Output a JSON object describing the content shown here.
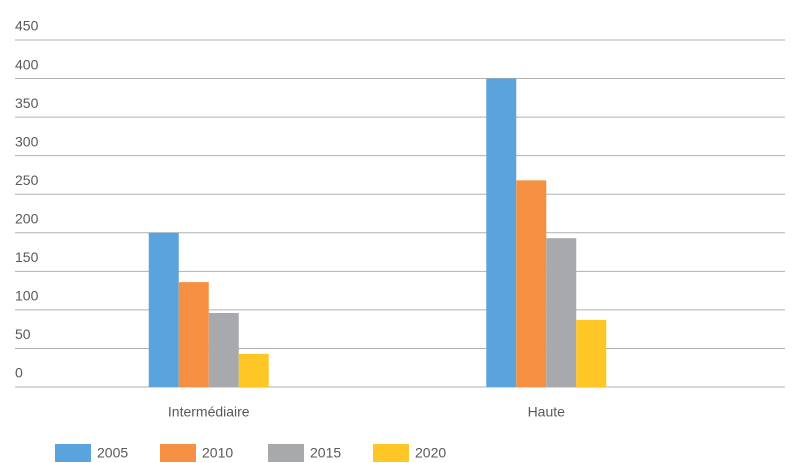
{
  "chart_data": {
    "type": "bar",
    "categories": [
      "Intermédiaire",
      "Haute"
    ],
    "series": [
      {
        "name": "2005",
        "color": "#5ba3dc",
        "values": [
          200,
          400
        ]
      },
      {
        "name": "2010",
        "color": "#f59042",
        "values": [
          136,
          268
        ]
      },
      {
        "name": "2015",
        "color": "#a7a9ac",
        "values": [
          96,
          193
        ]
      },
      {
        "name": "2020",
        "color": "#ffc726",
        "values": [
          43,
          87
        ]
      }
    ],
    "ylim": [
      0,
      450
    ],
    "yticks": [
      0,
      50,
      100,
      150,
      200,
      250,
      300,
      350,
      400,
      450
    ],
    "grid": true,
    "legend": "bottom"
  }
}
